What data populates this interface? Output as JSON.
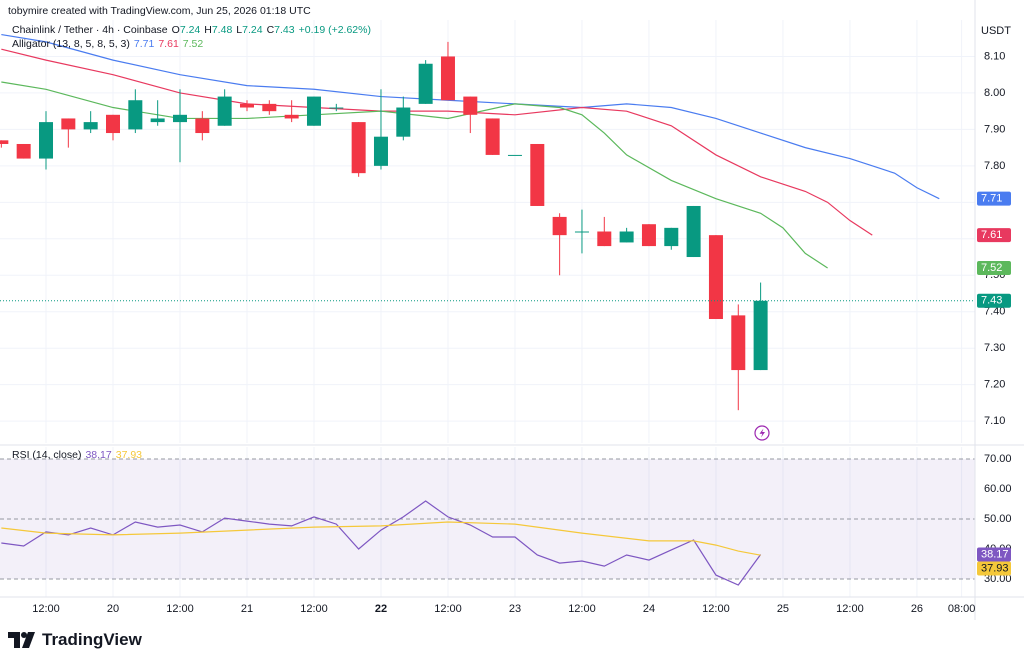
{
  "header": {
    "caption": "tobymire created with TradingView.com, Jun 25, 2026 01:18 UTC"
  },
  "chart_data": [
    {
      "type": "candlestick",
      "title": "Chainlink / Tether · 4h · Coinbase",
      "ohlc_labels": [
        "O",
        "H",
        "L",
        "C"
      ],
      "change": "+0.19 (+2.62%)",
      "y_unit": "USDT",
      "up_color": "#089981",
      "down_color": "#f23645",
      "x": [
        4,
        8,
        12,
        16,
        20,
        24,
        28,
        32,
        36,
        40,
        44,
        48,
        52,
        56,
        60,
        64,
        68,
        72,
        76,
        80,
        84,
        88,
        92,
        96,
        100,
        104,
        108,
        112,
        116,
        120,
        124,
        128,
        132,
        136,
        140
      ],
      "open": [
        7.87,
        7.86,
        7.82,
        7.93,
        7.9,
        7.94,
        7.9,
        7.92,
        7.92,
        7.93,
        7.91,
        7.97,
        7.97,
        7.94,
        7.91,
        7.96,
        7.92,
        7.8,
        7.88,
        7.97,
        8.1,
        7.99,
        7.93,
        7.83,
        7.86,
        7.66,
        7.62,
        7.62,
        7.59,
        7.64,
        7.58,
        7.55,
        7.61,
        7.39,
        7.24
      ],
      "high": [
        7.87,
        7.86,
        7.95,
        7.93,
        7.95,
        7.94,
        8.01,
        7.98,
        8.01,
        7.95,
        8.01,
        7.98,
        7.98,
        7.98,
        7.99,
        7.97,
        7.92,
        8.01,
        7.99,
        8.09,
        8.14,
        7.99,
        7.93,
        7.83,
        7.86,
        7.67,
        7.68,
        7.66,
        7.63,
        7.64,
        7.63,
        7.69,
        7.61,
        7.42,
        7.48
      ],
      "low": [
        7.85,
        7.82,
        7.79,
        7.85,
        7.89,
        7.87,
        7.89,
        7.91,
        7.81,
        7.87,
        7.91,
        7.95,
        7.94,
        7.92,
        7.91,
        7.95,
        7.77,
        7.79,
        7.87,
        7.97,
        7.98,
        7.89,
        7.83,
        7.83,
        7.69,
        7.5,
        7.56,
        7.58,
        7.59,
        7.58,
        7.57,
        7.55,
        7.38,
        7.13,
        7.24
      ],
      "close": [
        7.86,
        7.82,
        7.92,
        7.9,
        7.92,
        7.89,
        7.98,
        7.93,
        7.94,
        7.89,
        7.99,
        7.96,
        7.95,
        7.93,
        7.99,
        7.96,
        7.78,
        7.88,
        7.96,
        8.08,
        7.98,
        7.94,
        7.83,
        7.83,
        7.69,
        7.61,
        7.62,
        7.58,
        7.62,
        7.58,
        7.63,
        7.69,
        7.38,
        7.24,
        7.43
      ],
      "overlay": {
        "name": "Alligator (13, 8, 5, 8, 5, 3)",
        "series": [
          {
            "color": "#4a7cf0",
            "x": [
              4,
              12,
              24,
              36,
              48,
              60,
              72,
              84,
              96,
              108,
              116,
              124,
              132,
              140,
              148,
              156,
              160,
              164,
              168,
              172
            ],
            "values": [
              8.16,
              8.14,
              8.09,
              8.05,
              8.02,
              8.01,
              7.99,
              7.98,
              7.97,
              7.96,
              7.97,
              7.96,
              7.93,
              7.89,
              7.85,
              7.82,
              7.8,
              7.78,
              7.74,
              7.71
            ]
          },
          {
            "color": "#e8395f",
            "x": [
              4,
              12,
              24,
              36,
              48,
              60,
              72,
              84,
              96,
              108,
              116,
              124,
              132,
              140,
              148,
              152,
              156,
              160
            ],
            "values": [
              8.12,
              8.09,
              8.05,
              8.0,
              7.97,
              7.96,
              7.95,
              7.95,
              7.94,
              7.96,
              7.95,
              7.91,
              7.83,
              7.77,
              7.73,
              7.7,
              7.65,
              7.61
            ]
          },
          {
            "color": "#5cb85c",
            "x": [
              4,
              12,
              24,
              36,
              48,
              60,
              72,
              84,
              96,
              104,
              108,
              112,
              116,
              124,
              132,
              140,
              144,
              148,
              152
            ],
            "values": [
              8.03,
              8.01,
              7.96,
              7.93,
              7.93,
              7.94,
              7.95,
              7.93,
              7.97,
              7.96,
              7.94,
              7.89,
              7.83,
              7.76,
              7.71,
              7.67,
              7.63,
              7.56,
              7.52
            ]
          }
        ]
      },
      "ylim": [
        7.04,
        8.2
      ],
      "yticks": [
        {
          "value": 8.1,
          "label": "8.10"
        },
        {
          "value": 8.0,
          "label": "8.00"
        },
        {
          "value": 7.9,
          "label": "7.90"
        },
        {
          "value": 7.8,
          "label": "7.80"
        },
        {
          "value": 7.7,
          "label": "7.70"
        },
        {
          "value": 7.6,
          "label": "7.60"
        },
        {
          "value": 7.5,
          "label": "7.50"
        },
        {
          "value": 7.4,
          "label": "7.40"
        },
        {
          "value": 7.3,
          "label": "7.30"
        },
        {
          "value": 7.2,
          "label": "7.20"
        },
        {
          "value": 7.1,
          "label": "7.10"
        }
      ],
      "grid": true
    },
    {
      "type": "line",
      "title": "RSI (14, close)",
      "series": [
        {
          "color": "#7e57c2",
          "x": [
            4,
            8,
            12,
            16,
            20,
            24,
            28,
            32,
            36,
            40,
            44,
            48,
            52,
            56,
            60,
            64,
            68,
            72,
            76,
            80,
            84,
            88,
            92,
            96,
            100,
            104,
            108,
            112,
            116,
            120,
            124,
            128,
            132,
            136,
            140
          ],
          "values": [
            42,
            41,
            45.7,
            44.7,
            47,
            44.7,
            49,
            47.3,
            48,
            45.7,
            50.3,
            49.3,
            48.3,
            47.7,
            50.7,
            48.3,
            40,
            46.3,
            50.7,
            56,
            50.7,
            48,
            44,
            44,
            38,
            35.3,
            36,
            34.3,
            38,
            36.3,
            39.7,
            43,
            31.3,
            28,
            38.17
          ]
        },
        {
          "color": "#f5c83a",
          "x": [
            4,
            12,
            24,
            36,
            48,
            60,
            72,
            84,
            96,
            108,
            120,
            128,
            132,
            136,
            140
          ],
          "values": [
            47,
            45.3,
            44.7,
            45.3,
            46.3,
            47.3,
            47.7,
            49,
            48.3,
            45.3,
            42.7,
            42.7,
            41.3,
            39.3,
            37.93
          ]
        }
      ],
      "levels": [
        30,
        50,
        70
      ],
      "band_color": "#7e57c2",
      "xlim": [
        3.76,
        178.4
      ],
      "xticks": [
        {
          "value": 12,
          "label": "12:00"
        },
        {
          "value": 24,
          "label": "20"
        },
        {
          "value": 36,
          "label": "12:00"
        },
        {
          "value": 48,
          "label": "21"
        },
        {
          "value": 60,
          "label": "12:00"
        },
        {
          "value": 72,
          "label": "22",
          "bold": true
        },
        {
          "value": 84,
          "label": "12:00"
        },
        {
          "value": 96,
          "label": "23"
        },
        {
          "value": 108,
          "label": "12:00"
        },
        {
          "value": 120,
          "label": "24"
        },
        {
          "value": 132,
          "label": "12:00"
        },
        {
          "value": 144,
          "label": "25"
        },
        {
          "value": 156,
          "label": "12:00"
        },
        {
          "value": 168,
          "label": "26"
        },
        {
          "value": 176,
          "label": "08:00"
        }
      ],
      "ylim": [
        24,
        74
      ],
      "yticks": [
        {
          "value": 70,
          "label": "70.00"
        },
        {
          "value": 60,
          "label": "60.00"
        },
        {
          "value": 50,
          "label": "50.00"
        },
        {
          "value": 40,
          "label": "40.00"
        },
        {
          "value": 30,
          "label": "30.00"
        }
      ],
      "grid": true
    }
  ],
  "footer": {
    "logo": "TradingView"
  }
}
